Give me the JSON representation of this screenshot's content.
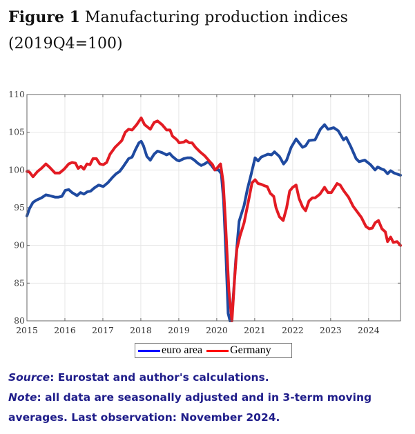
{
  "figure": {
    "label": "Figure 1",
    "title": "Manufacturing production indices",
    "subtitle": "(2019Q4=100)"
  },
  "chart_data": {
    "type": "line",
    "title": "Manufacturing production indices (2019Q4=100)",
    "xlabel": "",
    "ylabel": "",
    "xlim": [
      2015,
      2024.84
    ],
    "ylim": [
      80,
      110
    ],
    "grid": true,
    "legend_position": "bottom-center",
    "x_ticks": [
      "2015",
      "2016",
      "2017",
      "2018",
      "2019",
      "2020",
      "2021",
      "2022",
      "2023",
      "2024"
    ],
    "y_ticks": [
      "80",
      "85",
      "90",
      "95",
      "100",
      "105",
      "110"
    ],
    "series": [
      {
        "name": "euro area",
        "color": "#1f4aa0",
        "legend_color": "#0000ff",
        "points": [
          [
            2015.0,
            93.9
          ],
          [
            2015.07,
            94.9
          ],
          [
            2015.16,
            95.7
          ],
          [
            2015.25,
            96.0
          ],
          [
            2015.38,
            96.3
          ],
          [
            2015.5,
            96.7
          ],
          [
            2015.59,
            96.6
          ],
          [
            2015.74,
            96.4
          ],
          [
            2015.83,
            96.4
          ],
          [
            2015.92,
            96.5
          ],
          [
            2016.01,
            97.3
          ],
          [
            2016.1,
            97.4
          ],
          [
            2016.19,
            97.0
          ],
          [
            2016.32,
            96.6
          ],
          [
            2016.41,
            97.0
          ],
          [
            2016.5,
            96.8
          ],
          [
            2016.59,
            97.1
          ],
          [
            2016.68,
            97.2
          ],
          [
            2016.77,
            97.6
          ],
          [
            2016.89,
            98.0
          ],
          [
            2017.01,
            97.8
          ],
          [
            2017.13,
            98.3
          ],
          [
            2017.25,
            99.0
          ],
          [
            2017.35,
            99.5
          ],
          [
            2017.44,
            99.8
          ],
          [
            2017.53,
            100.4
          ],
          [
            2017.68,
            101.5
          ],
          [
            2017.77,
            101.7
          ],
          [
            2017.86,
            102.7
          ],
          [
            2017.95,
            103.6
          ],
          [
            2018.01,
            103.8
          ],
          [
            2018.07,
            103.2
          ],
          [
            2018.16,
            101.8
          ],
          [
            2018.25,
            101.3
          ],
          [
            2018.35,
            102.1
          ],
          [
            2018.44,
            102.5
          ],
          [
            2018.56,
            102.3
          ],
          [
            2018.68,
            102.0
          ],
          [
            2018.76,
            102.2
          ],
          [
            2018.83,
            101.8
          ],
          [
            2018.95,
            101.3
          ],
          [
            2019.01,
            101.2
          ],
          [
            2019.13,
            101.5
          ],
          [
            2019.22,
            101.6
          ],
          [
            2019.32,
            101.6
          ],
          [
            2019.41,
            101.3
          ],
          [
            2019.5,
            100.9
          ],
          [
            2019.59,
            100.6
          ],
          [
            2019.68,
            100.8
          ],
          [
            2019.77,
            101.1
          ],
          [
            2019.86,
            100.6
          ],
          [
            2019.95,
            100.0
          ],
          [
            2020.05,
            100.0
          ],
          [
            2020.12,
            99.5
          ],
          [
            2020.18,
            96.0
          ],
          [
            2020.24,
            89.0
          ],
          [
            2020.3,
            81.0
          ],
          [
            2020.35,
            80.0
          ],
          [
            2020.42,
            82.0
          ],
          [
            2020.5,
            88.0
          ],
          [
            2020.59,
            93.2
          ],
          [
            2020.72,
            95.3
          ],
          [
            2020.81,
            97.5
          ],
          [
            2020.9,
            99.3
          ],
          [
            2021.01,
            101.6
          ],
          [
            2021.09,
            101.2
          ],
          [
            2021.17,
            101.7
          ],
          [
            2021.35,
            102.1
          ],
          [
            2021.44,
            102.0
          ],
          [
            2021.52,
            102.4
          ],
          [
            2021.65,
            101.8
          ],
          [
            2021.76,
            100.8
          ],
          [
            2021.84,
            101.3
          ],
          [
            2021.96,
            103.0
          ],
          [
            2022.09,
            104.1
          ],
          [
            2022.26,
            103.0
          ],
          [
            2022.34,
            103.2
          ],
          [
            2022.43,
            103.9
          ],
          [
            2022.59,
            104.0
          ],
          [
            2022.73,
            105.4
          ],
          [
            2022.84,
            106.0
          ],
          [
            2022.93,
            105.4
          ],
          [
            2023.08,
            105.6
          ],
          [
            2023.2,
            105.2
          ],
          [
            2023.34,
            104.0
          ],
          [
            2023.41,
            104.3
          ],
          [
            2023.53,
            103.1
          ],
          [
            2023.67,
            101.5
          ],
          [
            2023.75,
            101.1
          ],
          [
            2023.9,
            101.3
          ],
          [
            2024.05,
            100.7
          ],
          [
            2024.17,
            100.0
          ],
          [
            2024.24,
            100.4
          ],
          [
            2024.35,
            100.1
          ],
          [
            2024.41,
            100.0
          ],
          [
            2024.5,
            99.5
          ],
          [
            2024.58,
            99.9
          ],
          [
            2024.67,
            99.6
          ],
          [
            2024.84,
            99.3
          ]
        ]
      },
      {
        "name": "Germany",
        "color": "#e31b23",
        "legend_color": "#ff0000",
        "points": [
          [
            2015.0,
            99.8
          ],
          [
            2015.07,
            99.7
          ],
          [
            2015.16,
            99.1
          ],
          [
            2015.28,
            99.8
          ],
          [
            2015.38,
            100.2
          ],
          [
            2015.5,
            100.8
          ],
          [
            2015.59,
            100.4
          ],
          [
            2015.74,
            99.6
          ],
          [
            2015.86,
            99.6
          ],
          [
            2015.98,
            100.1
          ],
          [
            2016.1,
            100.8
          ],
          [
            2016.19,
            101.0
          ],
          [
            2016.28,
            100.9
          ],
          [
            2016.35,
            100.2
          ],
          [
            2016.42,
            100.5
          ],
          [
            2016.5,
            100.1
          ],
          [
            2016.58,
            100.8
          ],
          [
            2016.66,
            100.7
          ],
          [
            2016.74,
            101.5
          ],
          [
            2016.83,
            101.5
          ],
          [
            2016.92,
            100.8
          ],
          [
            2017.01,
            100.7
          ],
          [
            2017.1,
            101.0
          ],
          [
            2017.19,
            102.1
          ],
          [
            2017.32,
            103.0
          ],
          [
            2017.44,
            103.6
          ],
          [
            2017.5,
            103.9
          ],
          [
            2017.59,
            105.0
          ],
          [
            2017.68,
            105.4
          ],
          [
            2017.77,
            105.3
          ],
          [
            2017.89,
            106.0
          ],
          [
            2018.01,
            106.9
          ],
          [
            2018.1,
            106.0
          ],
          [
            2018.25,
            105.4
          ],
          [
            2018.35,
            106.3
          ],
          [
            2018.44,
            106.5
          ],
          [
            2018.56,
            106.0
          ],
          [
            2018.68,
            105.3
          ],
          [
            2018.77,
            105.3
          ],
          [
            2018.83,
            104.5
          ],
          [
            2018.95,
            104.0
          ],
          [
            2019.01,
            103.6
          ],
          [
            2019.13,
            103.7
          ],
          [
            2019.19,
            103.9
          ],
          [
            2019.28,
            103.6
          ],
          [
            2019.35,
            103.6
          ],
          [
            2019.44,
            103.0
          ],
          [
            2019.56,
            102.4
          ],
          [
            2019.68,
            101.9
          ],
          [
            2019.8,
            101.2
          ],
          [
            2019.89,
            100.7
          ],
          [
            2019.95,
            100.0
          ],
          [
            2020.0,
            100.2
          ],
          [
            2020.1,
            100.8
          ],
          [
            2020.17,
            98.4
          ],
          [
            2020.23,
            93.2
          ],
          [
            2020.32,
            84.0
          ],
          [
            2020.4,
            80.0
          ],
          [
            2020.47,
            85.5
          ],
          [
            2020.53,
            89.5
          ],
          [
            2020.61,
            91.2
          ],
          [
            2020.72,
            93.0
          ],
          [
            2020.84,
            96.0
          ],
          [
            2020.93,
            98.3
          ],
          [
            2021.01,
            98.7
          ],
          [
            2021.09,
            98.2
          ],
          [
            2021.17,
            98.1
          ],
          [
            2021.26,
            97.9
          ],
          [
            2021.33,
            97.8
          ],
          [
            2021.41,
            96.9
          ],
          [
            2021.5,
            96.5
          ],
          [
            2021.56,
            95.0
          ],
          [
            2021.65,
            93.8
          ],
          [
            2021.75,
            93.3
          ],
          [
            2021.84,
            95.0
          ],
          [
            2021.92,
            97.2
          ],
          [
            2022.0,
            97.7
          ],
          [
            2022.09,
            98.0
          ],
          [
            2022.17,
            96.2
          ],
          [
            2022.26,
            95.1
          ],
          [
            2022.34,
            94.6
          ],
          [
            2022.43,
            95.9
          ],
          [
            2022.52,
            96.3
          ],
          [
            2022.59,
            96.3
          ],
          [
            2022.72,
            96.8
          ],
          [
            2022.84,
            97.7
          ],
          [
            2022.93,
            97.0
          ],
          [
            2023.02,
            97.0
          ],
          [
            2023.17,
            98.2
          ],
          [
            2023.25,
            98.0
          ],
          [
            2023.35,
            97.2
          ],
          [
            2023.47,
            96.4
          ],
          [
            2023.59,
            95.2
          ],
          [
            2023.68,
            94.6
          ],
          [
            2023.81,
            93.7
          ],
          [
            2023.93,
            92.5
          ],
          [
            2024.02,
            92.2
          ],
          [
            2024.1,
            92.3
          ],
          [
            2024.17,
            93.0
          ],
          [
            2024.26,
            93.3
          ],
          [
            2024.35,
            92.2
          ],
          [
            2024.44,
            91.8
          ],
          [
            2024.5,
            90.5
          ],
          [
            2024.58,
            91.1
          ],
          [
            2024.65,
            90.4
          ],
          [
            2024.75,
            90.5
          ],
          [
            2024.84,
            90.0
          ]
        ]
      }
    ]
  },
  "notes": {
    "source_label": "Source",
    "source_text": ": Eurostat and author's calculations.",
    "note_label": "Note",
    "note_text": ": all data are seasonally adjusted and in 3-term moving averages.  Last observation: November 2024."
  }
}
